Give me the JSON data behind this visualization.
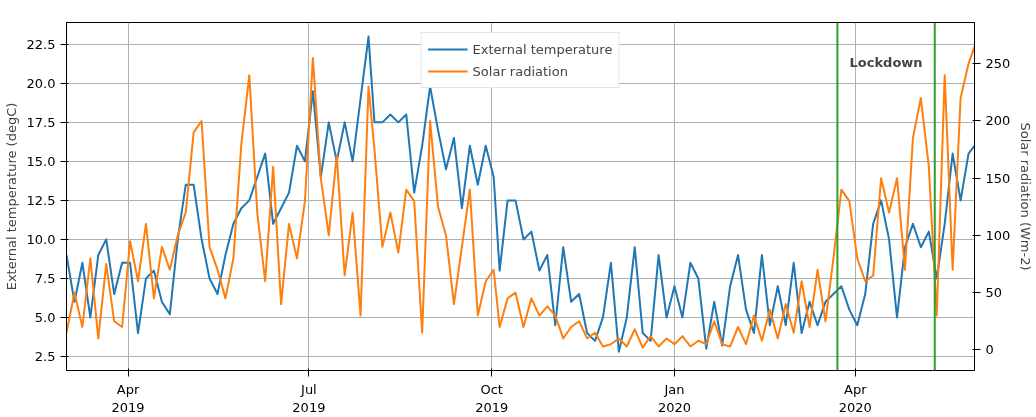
{
  "chart_data": {
    "type": "line",
    "xlabel": null,
    "ylabel": "External temperature (degC)",
    "y2label": "Solar radiation (Wm-2)",
    "xlim": [
      "2019-03-01",
      "2020-05-31"
    ],
    "xticks": [
      {
        "value": "2019-04-01",
        "label": "Apr\n2019"
      },
      {
        "value": "2019-07-01",
        "label": "Jul\n2019"
      },
      {
        "value": "2019-10-01",
        "label": "Oct\n2019"
      },
      {
        "value": "2020-01-01",
        "label": "Jan\n2020"
      },
      {
        "value": "2020-04-01",
        "label": "Apr\n2020"
      }
    ],
    "ylim": [
      1.6,
      23.9
    ],
    "yticks": [
      {
        "value": 2.5,
        "label": "2.5"
      },
      {
        "value": 5,
        "label": "5.0"
      },
      {
        "value": 7.5,
        "label": "7.5"
      },
      {
        "value": 10,
        "label": "10.0"
      },
      {
        "value": 12.5,
        "label": "12.5"
      },
      {
        "value": 15,
        "label": "15.0"
      },
      {
        "value": 17.5,
        "label": "17.5"
      },
      {
        "value": 20,
        "label": "20.0"
      },
      {
        "value": 22.5,
        "label": "22.5"
      }
    ],
    "y2lim": [
      -18,
      286
    ],
    "y2ticks": [
      0,
      50,
      100,
      150,
      200,
      250
    ],
    "grid": true,
    "legend": "top",
    "x": [
      "2019-03-01",
      "2019-03-05",
      "2019-03-09",
      "2019-03-13",
      "2019-03-17",
      "2019-03-21",
      "2019-03-25",
      "2019-03-29",
      "2019-04-02",
      "2019-04-06",
      "2019-04-10",
      "2019-04-14",
      "2019-04-18",
      "2019-04-22",
      "2019-04-26",
      "2019-04-30",
      "2019-05-04",
      "2019-05-08",
      "2019-05-12",
      "2019-05-16",
      "2019-05-20",
      "2019-05-24",
      "2019-05-28",
      "2019-06-01",
      "2019-06-05",
      "2019-06-09",
      "2019-06-13",
      "2019-06-17",
      "2019-06-21",
      "2019-06-25",
      "2019-06-29",
      "2019-07-03",
      "2019-07-07",
      "2019-07-11",
      "2019-07-15",
      "2019-07-19",
      "2019-07-23",
      "2019-07-27",
      "2019-07-31",
      "2019-08-03",
      "2019-08-07",
      "2019-08-11",
      "2019-08-15",
      "2019-08-19",
      "2019-08-23",
      "2019-08-27",
      "2019-08-31",
      "2019-09-04",
      "2019-09-08",
      "2019-09-12",
      "2019-09-16",
      "2019-09-20",
      "2019-09-24",
      "2019-09-28",
      "2019-10-02",
      "2019-10-05",
      "2019-10-09",
      "2019-10-13",
      "2019-10-17",
      "2019-10-21",
      "2019-10-25",
      "2019-10-29",
      "2019-11-02",
      "2019-11-06",
      "2019-11-10",
      "2019-11-14",
      "2019-11-18",
      "2019-11-22",
      "2019-11-26",
      "2019-11-30",
      "2019-12-04",
      "2019-12-08",
      "2019-12-12",
      "2019-12-16",
      "2019-12-20",
      "2019-12-24",
      "2019-12-28",
      "2020-01-01",
      "2020-01-05",
      "2020-01-09",
      "2020-01-13",
      "2020-01-17",
      "2020-01-21",
      "2020-01-25",
      "2020-01-29",
      "2020-02-02",
      "2020-02-06",
      "2020-02-10",
      "2020-02-14",
      "2020-02-18",
      "2020-02-22",
      "2020-02-26",
      "2020-03-01",
      "2020-03-05",
      "2020-03-09",
      "2020-03-13",
      "2020-03-17",
      "2020-03-21",
      "2020-03-25",
      "2020-03-29",
      "2020-04-02",
      "2020-04-06",
      "2020-04-10",
      "2020-04-14",
      "2020-04-18",
      "2020-04-22",
      "2020-04-26",
      "2020-04-30",
      "2020-05-04",
      "2020-05-08",
      "2020-05-12",
      "2020-05-16",
      "2020-05-20",
      "2020-05-24",
      "2020-05-28",
      "2020-05-31"
    ],
    "series": [
      {
        "name": "External temperature",
        "color": "#1f77b4",
        "values": [
          9.0,
          6,
          8.5,
          5,
          9,
          10,
          6.5,
          8.5,
          8.5,
          4,
          7.5,
          8,
          6,
          5.2,
          10,
          13.5,
          13.5,
          10,
          7.5,
          6.5,
          9,
          11,
          12,
          12.5,
          14,
          15.5,
          11,
          12,
          13,
          16,
          15,
          19.5,
          14,
          17.5,
          15,
          17.5,
          15,
          19,
          23,
          17.5,
          17.5,
          18,
          17.5,
          18,
          13,
          16,
          19.8,
          17,
          14.5,
          16.5,
          12,
          16,
          13.5,
          16,
          14,
          8,
          12.5,
          12.5,
          10,
          10.5,
          8,
          9,
          4.5,
          9.5,
          6,
          6.5,
          4,
          3.5,
          5,
          8.5,
          2.8,
          5,
          9.5,
          4,
          3.5,
          9,
          5,
          7,
          5,
          8.5,
          7.5,
          3,
          6,
          3.2,
          7,
          9,
          5.5,
          4,
          9,
          4.5,
          7,
          4.5,
          8.5,
          4,
          6,
          4.5,
          6,
          6.5,
          7,
          5.5,
          4.5,
          6.5,
          11,
          12.5,
          10,
          5,
          9.5,
          11,
          9.5,
          10.5,
          7.5,
          11,
          15.5,
          12.5,
          15.5,
          16
        ]
      },
      {
        "name": "Solar radiation",
        "color": "#ff7f0e",
        "axis": "y2",
        "values": [
          15,
          50,
          20,
          80,
          10,
          75,
          25,
          20,
          95,
          60,
          110,
          45,
          90,
          70,
          100,
          120,
          190,
          200,
          90,
          70,
          45,
          80,
          180,
          240,
          120,
          60,
          160,
          40,
          110,
          80,
          130,
          255,
          150,
          100,
          170,
          65,
          120,
          30,
          230,
          175,
          90,
          120,
          85,
          140,
          130,
          15,
          200,
          125,
          100,
          40,
          90,
          140,
          30,
          60,
          70,
          20,
          45,
          50,
          20,
          45,
          30,
          38,
          30,
          10,
          20,
          25,
          10,
          15,
          3,
          5,
          10,
          3,
          18,
          2,
          12,
          3,
          10,
          5,
          12,
          3,
          8,
          5,
          25,
          5,
          3,
          20,
          5,
          30,
          8,
          35,
          10,
          40,
          15,
          60,
          20,
          70,
          25,
          80,
          140,
          130,
          80,
          60,
          65,
          150,
          120,
          150,
          70,
          185,
          220,
          160,
          30,
          240,
          70,
          220,
          250,
          265
        ]
      }
    ],
    "ref_lines": [
      {
        "axis": "x",
        "value": "2020-03-23",
        "color": "#2ca02c"
      },
      {
        "axis": "x",
        "value": "2020-05-11",
        "color": "#2ca02c"
      }
    ],
    "annotations": [
      "Lockdown"
    ]
  }
}
